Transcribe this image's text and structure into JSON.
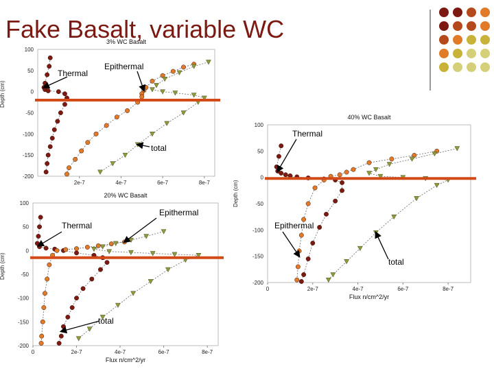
{
  "slide": {
    "title": "Fake Basalt, variable WC",
    "deco_colors": [
      "#7a1a12",
      "#b44a1c",
      "#e07b2a",
      "#c9b23a",
      "#d6cf7a"
    ]
  },
  "colors": {
    "thermal": "#7a1a12",
    "epithermal": "#e07b2a",
    "total": "#8f9a3a",
    "threshold": "#d24a17"
  },
  "chart_data": [
    {
      "id": "c3",
      "type": "scatter",
      "title": "3% WC Basalt",
      "xlabel": "",
      "ylabel": "Depth (cm)",
      "xlim": [
        0,
        8.5e-07
      ],
      "ylim": [
        -200,
        100
      ],
      "xticks": [
        "2e-7",
        "4e-7",
        "6e-7",
        "8e-7"
      ],
      "yticks": [
        "100",
        "50",
        "0",
        "-50",
        "-100",
        "-150",
        "-200"
      ],
      "threshold_y": -20,
      "series": [
        {
          "key": "thermal",
          "marker": "circle",
          "points": [
            [
              6e-08,
              80
            ],
            [
              5.5e-08,
              60
            ],
            [
              4.5e-08,
              40
            ],
            [
              3.5e-08,
              20
            ],
            [
              3e-08,
              10
            ],
            [
              3.5e-08,
              5
            ],
            [
              5e-08,
              2
            ],
            [
              1e-07,
              0
            ],
            [
              1.3e-07,
              -5
            ],
            [
              1.4e-07,
              -15
            ],
            [
              1.3e-07,
              -30
            ],
            [
              1.1e-07,
              -50
            ],
            [
              9.5e-08,
              -70
            ],
            [
              8e-08,
              -90
            ],
            [
              7e-08,
              -110
            ],
            [
              6e-08,
              -130
            ],
            [
              5e-08,
              -150
            ],
            [
              4.5e-08,
              -170
            ],
            [
              4e-08,
              -190
            ]
          ]
        },
        {
          "key": "epithermal",
          "marker": "circle",
          "points": [
            [
              7.5e-07,
              65
            ],
            [
              7e-07,
              58
            ],
            [
              6.5e-07,
              48
            ],
            [
              6e-07,
              38
            ],
            [
              5.5e-07,
              25
            ],
            [
              5.2e-07,
              10
            ],
            [
              5.1e-07,
              3
            ],
            [
              5e-07,
              -5
            ],
            [
              5e-07,
              -12
            ],
            [
              4.8e-07,
              -25
            ],
            [
              4.3e-07,
              -45
            ],
            [
              3.8e-07,
              -60
            ],
            [
              3.3e-07,
              -80
            ],
            [
              2.8e-07,
              -100
            ],
            [
              2.4e-07,
              -120
            ],
            [
              2.1e-07,
              -140
            ],
            [
              1.8e-07,
              -160
            ],
            [
              1.5e-07,
              -180
            ],
            [
              1.4e-07,
              -195
            ]
          ]
        },
        {
          "key": "total",
          "marker": "triangle",
          "points": [
            [
              8.2e-07,
              70
            ],
            [
              7.5e-07,
              60
            ],
            [
              6.8e-07,
              45
            ],
            [
              6.1e-07,
              30
            ],
            [
              5.7e-07,
              15
            ],
            [
              5.5e-07,
              5
            ],
            [
              6e-07,
              0
            ],
            [
              6.6e-07,
              -3
            ],
            [
              7.5e-07,
              -8
            ],
            [
              8e-07,
              -15
            ],
            [
              7.7e-07,
              -25
            ],
            [
              7e-07,
              -50
            ],
            [
              6.2e-07,
              -75
            ],
            [
              5.5e-07,
              -100
            ],
            [
              4.8e-07,
              -125
            ],
            [
              4.2e-07,
              -150
            ],
            [
              3.6e-07,
              -170
            ],
            [
              3e-07,
              -190
            ]
          ]
        }
      ]
    },
    {
      "id": "c20",
      "type": "scatter",
      "title": "20% WC Basalt",
      "xlabel": "Flux n/cm^2/yr",
      "ylabel": "Depth (cm)",
      "xlim": [
        0,
        8.5e-07
      ],
      "ylim": [
        -200,
        100
      ],
      "xticks": [
        "0",
        "2e-7",
        "4e-7",
        "6e-7",
        "8e-7"
      ],
      "yticks": [
        "100",
        "50",
        "0",
        "-50",
        "-100",
        "-150",
        "-200"
      ],
      "threshold_y": -15,
      "series": [
        {
          "key": "thermal",
          "marker": "circle",
          "points": [
            [
              3.5e-08,
              70
            ],
            [
              3e-08,
              50
            ],
            [
              2.5e-08,
              30
            ],
            [
              2e-08,
              15
            ],
            [
              3e-08,
              8
            ],
            [
              6e-08,
              5
            ],
            [
              1e-07,
              3
            ],
            [
              1.4e-07,
              0
            ],
            [
              2e-07,
              -5
            ],
            [
              2.8e-07,
              -10
            ],
            [
              3.2e-07,
              -15
            ],
            [
              3.4e-07,
              -25
            ],
            [
              3.1e-07,
              -40
            ],
            [
              2.7e-07,
              -60
            ],
            [
              2.3e-07,
              -80
            ],
            [
              2e-07,
              -100
            ],
            [
              1.8e-07,
              -120
            ],
            [
              1.6e-07,
              -140
            ],
            [
              1.4e-07,
              -160
            ],
            [
              1.3e-07,
              -180
            ],
            [
              1.2e-07,
              -195
            ]
          ]
        },
        {
          "key": "epithermal",
          "marker": "circle",
          "points": [
            [
              4.2e-07,
              18
            ],
            [
              3.6e-07,
              14
            ],
            [
              3e-07,
              10
            ],
            [
              2.5e-07,
              7
            ],
            [
              2e-07,
              4
            ],
            [
              1.5e-07,
              2
            ],
            [
              1.1e-07,
              0
            ],
            [
              9e-08,
              -10
            ],
            [
              7.5e-08,
              -30
            ],
            [
              6.5e-08,
              -60
            ],
            [
              5.5e-08,
              -90
            ],
            [
              5e-08,
              -120
            ],
            [
              4.5e-08,
              -150
            ],
            [
              4e-08,
              -180
            ],
            [
              3.8e-08,
              -195
            ]
          ]
        },
        {
          "key": "total",
          "marker": "triangle",
          "points": [
            [
              6e-07,
              40
            ],
            [
              5.2e-07,
              30
            ],
            [
              4.5e-07,
              22
            ],
            [
              3.8e-07,
              15
            ],
            [
              3.2e-07,
              8
            ],
            [
              2.8e-07,
              3
            ],
            [
              3.5e-07,
              -2
            ],
            [
              4.5e-07,
              -4
            ],
            [
              5.5e-07,
              -6
            ],
            [
              6.5e-07,
              -8
            ],
            [
              7.6e-07,
              -10
            ],
            [
              7e-07,
              -20
            ],
            [
              6.2e-07,
              -40
            ],
            [
              5.4e-07,
              -65
            ],
            [
              4.6e-07,
              -90
            ],
            [
              3.9e-07,
              -115
            ],
            [
              3.2e-07,
              -140
            ],
            [
              2.6e-07,
              -165
            ],
            [
              2.1e-07,
              -185
            ]
          ]
        }
      ]
    },
    {
      "id": "c40",
      "type": "scatter",
      "title": "40% WC Basalt",
      "xlabel": "Flux n/cm^2/yr",
      "ylabel": "Depth (cm)",
      "xlim": [
        0,
        9e-07
      ],
      "ylim": [
        -200,
        100
      ],
      "xticks": [
        "0",
        "2e-7",
        "4e-7",
        "6e-7",
        "8e-7"
      ],
      "yticks": [
        "100",
        "50",
        "0",
        "-50",
        "-100",
        "-150",
        "-200"
      ],
      "threshold_y": -2,
      "series": [
        {
          "key": "thermal",
          "marker": "circle",
          "points": [
            [
              6e-08,
              60
            ],
            [
              5e-08,
              40
            ],
            [
              4e-08,
              20
            ],
            [
              4.5e-08,
              12
            ],
            [
              6e-08,
              8
            ],
            [
              8e-08,
              5
            ],
            [
              1e-07,
              3
            ],
            [
              1.3e-07,
              1
            ],
            [
              1.8e-07,
              -1
            ],
            [
              2.5e-07,
              -3
            ],
            [
              3e-07,
              -5
            ],
            [
              3.3e-07,
              -10
            ],
            [
              3.3e-07,
              -25
            ],
            [
              3e-07,
              -45
            ],
            [
              2.6e-07,
              -70
            ],
            [
              2.3e-07,
              -95
            ],
            [
              2e-07,
              -125
            ],
            [
              1.8e-07,
              -155
            ],
            [
              1.6e-07,
              -185
            ],
            [
              1.5e-07,
              -198
            ]
          ]
        },
        {
          "key": "epithermal",
          "marker": "circle",
          "points": [
            [
              7.5e-07,
              50
            ],
            [
              6.5e-07,
              42
            ],
            [
              5.5e-07,
              35
            ],
            [
              4.5e-07,
              28
            ],
            [
              3.8e-07,
              15
            ],
            [
              3.5e-07,
              10
            ],
            [
              3.2e-07,
              5
            ],
            [
              2.8e-07,
              2
            ],
            [
              2.5e-07,
              -5
            ],
            [
              2.1e-07,
              -20
            ],
            [
              1.8e-07,
              -50
            ],
            [
              1.6e-07,
              -80
            ],
            [
              1.5e-07,
              -110
            ],
            [
              1.4e-07,
              -140
            ],
            [
              1.35e-07,
              -170
            ],
            [
              1.3e-07,
              -195
            ]
          ]
        },
        {
          "key": "total",
          "marker": "triangle",
          "points": [
            [
              8.4e-07,
              55
            ],
            [
              7.4e-07,
              45
            ],
            [
              6.4e-07,
              35
            ],
            [
              5.4e-07,
              25
            ],
            [
              4.8e-07,
              15
            ],
            [
              4.5e-07,
              8
            ],
            [
              5e-07,
              2
            ],
            [
              6e-07,
              0
            ],
            [
              7e-07,
              -2
            ],
            [
              8e-07,
              -5
            ],
            [
              7.5e-07,
              -15
            ],
            [
              6.6e-07,
              -40
            ],
            [
              5.6e-07,
              -75
            ],
            [
              4.8e-07,
              -105
            ],
            [
              4.1e-07,
              -135
            ],
            [
              3.5e-07,
              -160
            ],
            [
              2.9e-07,
              -185
            ],
            [
              2.7e-07,
              -195
            ]
          ]
        }
      ]
    }
  ],
  "annotations": {
    "c3_thermal": "Thermal",
    "c3_epithermal": "Epithermal",
    "c3_total": "total",
    "c20_epithermal": "Epithermal",
    "c20_thermal": "Thermal",
    "c20_total": "total",
    "c40_thermal": "Thermal",
    "c40_epithermal": "Epithermal",
    "c40_total": "total"
  }
}
